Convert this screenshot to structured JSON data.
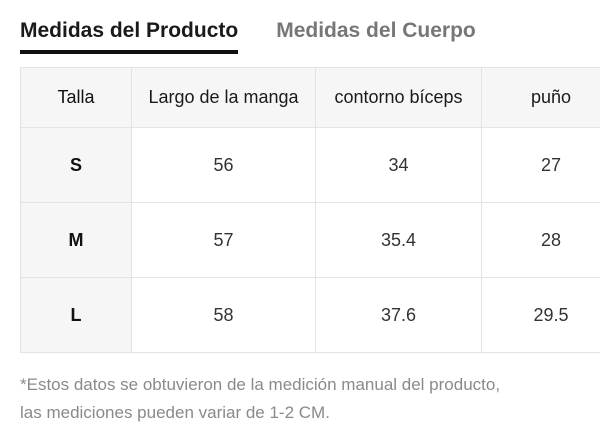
{
  "tabs": [
    {
      "label": "Medidas del Producto",
      "active": true
    },
    {
      "label": "Medidas del Cuerpo",
      "active": false
    }
  ],
  "table": {
    "headers": [
      "Talla",
      "Largo de la manga",
      "contorno bíceps",
      "puño"
    ],
    "rows": [
      [
        "S",
        "56",
        "34",
        "27"
      ],
      [
        "M",
        "57",
        "35.4",
        "28"
      ],
      [
        "L",
        "58",
        "37.6",
        "29.5"
      ]
    ]
  },
  "note": {
    "line1": "*Estos datos se obtuvieron de la medición manual del producto,",
    "line2": "las mediciones pueden variar de 1-2 CM."
  }
}
